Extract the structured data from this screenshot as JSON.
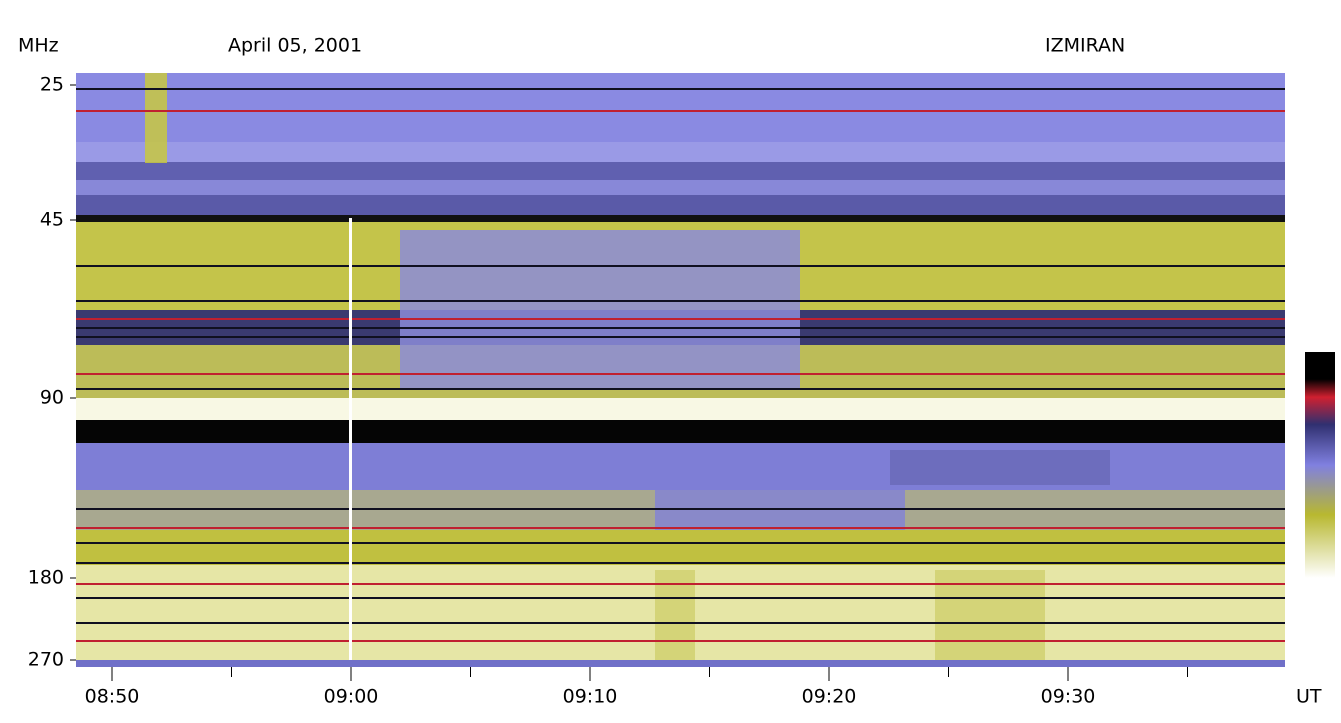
{
  "chart_data": {
    "type": "spectrogram",
    "title": "April 05, 2001",
    "source": "IZMIRAN",
    "ylabel": "MHz",
    "xlabel": "UT",
    "yticks": [
      25,
      45,
      90,
      180,
      270
    ],
    "xticks": [
      "08:50",
      "09:00",
      "09:10",
      "09:20",
      "09:30"
    ]
  }
}
